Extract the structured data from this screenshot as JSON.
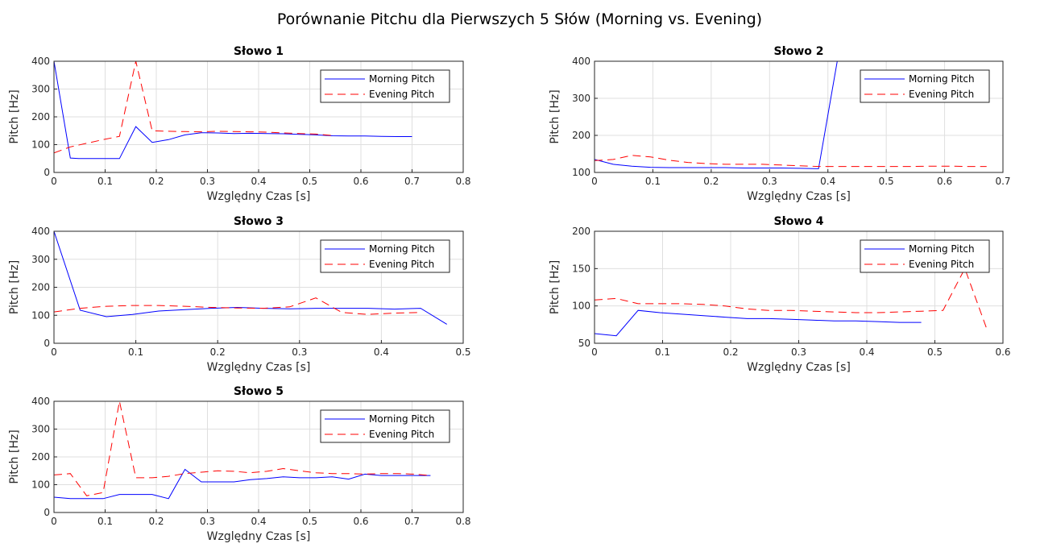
{
  "figure_title": "Porównanie Pitchu dla Pierwszych 5 Słów (Morning vs. Evening)",
  "colors": {
    "morning": "#0000ff",
    "evening": "#ff0000",
    "grid": "#dfdfdf",
    "axis": "#262626"
  },
  "chart_data": [
    {
      "type": "line",
      "title": "Słowo 1",
      "xlabel": "Względny Czas [s]",
      "ylabel": "Pitch [Hz]",
      "xlim": [
        0,
        0.8
      ],
      "ylim": [
        0,
        400
      ],
      "xticks": [
        "0",
        "0.1",
        "0.2",
        "0.3",
        "0.4",
        "0.5",
        "0.6",
        "0.7",
        "0.8"
      ],
      "yticks": [
        "0",
        "100",
        "200",
        "300",
        "400"
      ],
      "grid": true,
      "legend": "top-right",
      "series": [
        {
          "name": "Morning Pitch",
          "style": "solid",
          "x": [
            0,
            0.032,
            0.048,
            0.096,
            0.128,
            0.16,
            0.192,
            0.224,
            0.256,
            0.288,
            0.32,
            0.352,
            0.384,
            0.416,
            0.448,
            0.48,
            0.512,
            0.544,
            0.576,
            0.608,
            0.64,
            0.672,
            0.7
          ],
          "y": [
            400,
            52,
            50,
            50,
            50,
            165,
            108,
            118,
            135,
            143,
            142,
            140,
            141,
            140,
            139,
            137,
            135,
            132,
            131,
            131,
            130,
            129,
            129
          ]
        },
        {
          "name": "Evening Pitch",
          "style": "dashed",
          "x": [
            0,
            0.032,
            0.064,
            0.096,
            0.128,
            0.16,
            0.192,
            0.224,
            0.256,
            0.288,
            0.32,
            0.352,
            0.384,
            0.416,
            0.448,
            0.48,
            0.512,
            0.544
          ],
          "y": [
            70,
            92,
            105,
            118,
            130,
            400,
            150,
            148,
            147,
            146,
            148,
            147,
            146,
            145,
            142,
            140,
            138,
            133
          ]
        }
      ]
    },
    {
      "type": "line",
      "title": "Słowo 2",
      "xlabel": "Względny Czas [s]",
      "ylabel": "Pitch [Hz]",
      "xlim": [
        0,
        0.7
      ],
      "ylim": [
        100,
        400
      ],
      "xticks": [
        "0",
        "0.1",
        "0.2",
        "0.3",
        "0.4",
        "0.5",
        "0.6",
        "0.7"
      ],
      "yticks": [
        "100",
        "200",
        "300",
        "400"
      ],
      "grid": true,
      "legend": "top-right",
      "series": [
        {
          "name": "Morning Pitch",
          "style": "solid",
          "x": [
            0,
            0.032,
            0.064,
            0.096,
            0.128,
            0.16,
            0.192,
            0.224,
            0.256,
            0.288,
            0.32,
            0.352,
            0.384,
            0.416,
            0.448
          ],
          "y": [
            135,
            122,
            117,
            114,
            113,
            113,
            113,
            113,
            112,
            112,
            112,
            111,
            110,
            400,
            400
          ]
        },
        {
          "name": "Evening Pitch",
          "style": "dashed",
          "x": [
            0,
            0.032,
            0.064,
            0.096,
            0.128,
            0.16,
            0.192,
            0.224,
            0.256,
            0.288,
            0.32,
            0.352,
            0.384,
            0.416,
            0.448,
            0.48,
            0.512,
            0.544,
            0.576,
            0.608,
            0.64,
            0.672
          ],
          "y": [
            132,
            135,
            146,
            142,
            133,
            127,
            124,
            122,
            122,
            122,
            120,
            118,
            116,
            116,
            116,
            116,
            116,
            116,
            117,
            117,
            116,
            116
          ]
        }
      ]
    },
    {
      "type": "line",
      "title": "Słowo 3",
      "xlabel": "Względny Czas [s]",
      "ylabel": "Pitch [Hz]",
      "xlim": [
        0,
        0.5
      ],
      "ylim": [
        0,
        400
      ],
      "xticks": [
        "0",
        "0.1",
        "0.2",
        "0.3",
        "0.4",
        "0.5"
      ],
      "yticks": [
        "0",
        "100",
        "200",
        "300",
        "400"
      ],
      "grid": true,
      "legend": "top-right",
      "series": [
        {
          "name": "Morning Pitch",
          "style": "solid",
          "x": [
            0,
            0.032,
            0.064,
            0.096,
            0.128,
            0.16,
            0.192,
            0.224,
            0.256,
            0.288,
            0.32,
            0.352,
            0.384,
            0.416,
            0.448,
            0.48
          ],
          "y": [
            400,
            118,
            95,
            103,
            115,
            120,
            125,
            128,
            125,
            123,
            125,
            125,
            125,
            122,
            125,
            68
          ]
        },
        {
          "name": "Evening Pitch",
          "style": "dashed",
          "x": [
            0,
            0.032,
            0.064,
            0.096,
            0.128,
            0.16,
            0.192,
            0.224,
            0.256,
            0.288,
            0.32,
            0.352,
            0.384,
            0.416,
            0.448
          ],
          "y": [
            112,
            125,
            132,
            135,
            135,
            132,
            128,
            126,
            125,
            130,
            162,
            110,
            103,
            108,
            110
          ]
        }
      ]
    },
    {
      "type": "line",
      "title": "Słowo 4",
      "xlabel": "Względny Czas [s]",
      "ylabel": "Pitch [Hz]",
      "xlim": [
        0,
        0.6
      ],
      "ylim": [
        50,
        200
      ],
      "xticks": [
        "0",
        "0.1",
        "0.2",
        "0.3",
        "0.4",
        "0.5",
        "0.6"
      ],
      "yticks": [
        "50",
        "100",
        "150",
        "200"
      ],
      "grid": true,
      "legend": "top-right",
      "series": [
        {
          "name": "Morning Pitch",
          "style": "solid",
          "x": [
            0,
            0.032,
            0.064,
            0.096,
            0.128,
            0.16,
            0.192,
            0.224,
            0.256,
            0.288,
            0.32,
            0.352,
            0.384,
            0.416,
            0.448,
            0.48
          ],
          "y": [
            63,
            60,
            94,
            91,
            89,
            87,
            85,
            83,
            83,
            82,
            81,
            80,
            80,
            79,
            78,
            78
          ]
        },
        {
          "name": "Evening Pitch",
          "style": "dashed",
          "x": [
            0,
            0.032,
            0.064,
            0.096,
            0.128,
            0.16,
            0.192,
            0.224,
            0.256,
            0.288,
            0.32,
            0.352,
            0.384,
            0.416,
            0.448,
            0.48,
            0.512,
            0.544,
            0.576
          ],
          "y": [
            108,
            110,
            103,
            103,
            103,
            102,
            100,
            96,
            94,
            94,
            93,
            92,
            91,
            91,
            92,
            93,
            94,
            150,
            70
          ]
        }
      ]
    },
    {
      "type": "line",
      "title": "Słowo 5",
      "xlabel": "Względny Czas [s]",
      "ylabel": "Pitch [Hz]",
      "xlim": [
        0,
        0.8
      ],
      "ylim": [
        0,
        400
      ],
      "xticks": [
        "0",
        "0.1",
        "0.2",
        "0.3",
        "0.4",
        "0.5",
        "0.6",
        "0.7",
        "0.8"
      ],
      "yticks": [
        "0",
        "100",
        "200",
        "300",
        "400"
      ],
      "grid": true,
      "legend": "top-right",
      "series": [
        {
          "name": "Morning Pitch",
          "style": "solid",
          "x": [
            0,
            0.032,
            0.064,
            0.096,
            0.128,
            0.16,
            0.192,
            0.224,
            0.256,
            0.288,
            0.32,
            0.352,
            0.384,
            0.416,
            0.448,
            0.48,
            0.512,
            0.544,
            0.576,
            0.608,
            0.64,
            0.672,
            0.704,
            0.736
          ],
          "y": [
            55,
            50,
            50,
            50,
            65,
            65,
            65,
            50,
            155,
            110,
            110,
            110,
            118,
            122,
            128,
            125,
            125,
            128,
            120,
            138,
            133,
            133,
            133,
            133
          ]
        },
        {
          "name": "Evening Pitch",
          "style": "dashed",
          "x": [
            0,
            0.032,
            0.064,
            0.096,
            0.128,
            0.16,
            0.192,
            0.224,
            0.256,
            0.288,
            0.32,
            0.352,
            0.384,
            0.416,
            0.448,
            0.48,
            0.512,
            0.544,
            0.576,
            0.608,
            0.64,
            0.672,
            0.704,
            0.736
          ],
          "y": [
            135,
            140,
            60,
            72,
            400,
            125,
            125,
            130,
            140,
            145,
            150,
            148,
            143,
            148,
            158,
            150,
            143,
            140,
            140,
            138,
            140,
            140,
            138,
            133
          ]
        }
      ]
    }
  ]
}
